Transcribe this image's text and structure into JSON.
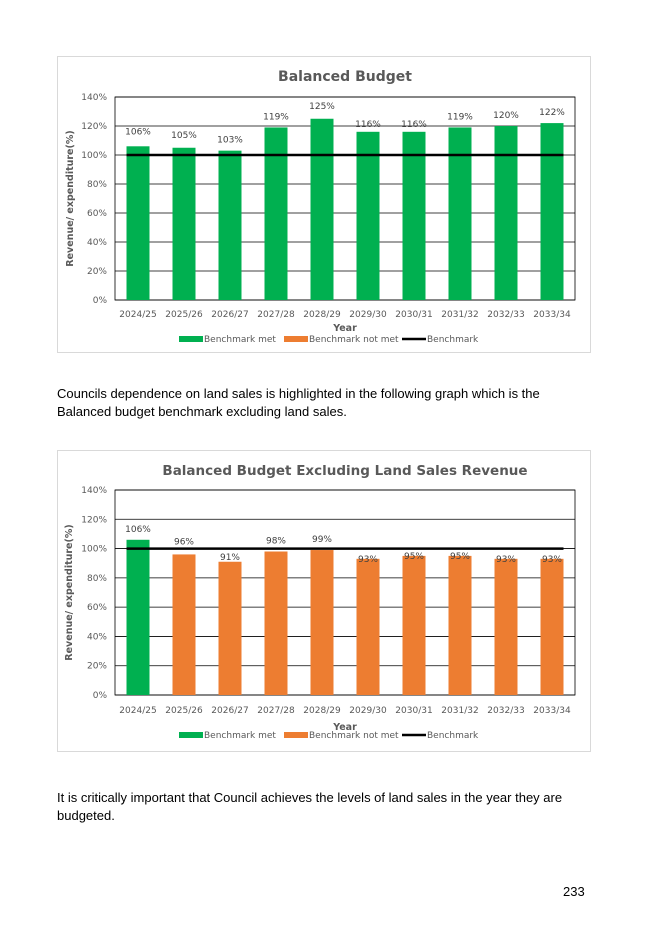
{
  "chart_data": [
    {
      "type": "bar",
      "title": "Balanced Budget",
      "xlabel": "Year",
      "ylabel": "Revenue/ expenditure(%)",
      "categories": [
        "2024/25",
        "2025/26",
        "2026/27",
        "2027/28",
        "2028/29",
        "2029/30",
        "2030/31",
        "2031/32",
        "2032/33",
        "2033/34"
      ],
      "values": [
        106,
        105,
        103,
        119,
        125,
        116,
        116,
        119,
        120,
        122
      ],
      "data_labels": [
        "106%",
        "105%",
        "103%",
        "119%",
        "125%",
        "116%",
        "116%",
        "119%",
        "120%",
        "122%"
      ],
      "bar_status": [
        "met",
        "met",
        "met",
        "met",
        "met",
        "met",
        "met",
        "met",
        "met",
        "met"
      ],
      "ylim": [
        0,
        140
      ],
      "yticks": [
        "0%",
        "20%",
        "40%",
        "60%",
        "80%",
        "100%",
        "120%",
        "140%"
      ],
      "benchmark": 100,
      "legend": [
        "Benchmark met",
        "Benchmark not met",
        "Benchmark"
      ],
      "legend_position": "bottom",
      "colors": {
        "met": "#00b050",
        "not_met": "#ed7d31",
        "benchmark": "#000000"
      }
    },
    {
      "type": "bar",
      "title": "Balanced Budget Excluding Land Sales Revenue",
      "xlabel": "Year",
      "ylabel": "Revenue/ expenditure(%)",
      "categories": [
        "2024/25",
        "2025/26",
        "2026/27",
        "2027/28",
        "2028/29",
        "2029/30",
        "2030/31",
        "2031/32",
        "2032/33",
        "2033/34"
      ],
      "values": [
        106,
        96,
        91,
        98,
        99,
        93,
        95,
        95,
        93,
        93
      ],
      "data_labels": [
        "106%",
        "96%",
        "91%",
        "98%",
        "99%",
        "93%",
        "95%",
        "95%",
        "93%",
        "93%"
      ],
      "bar_status": [
        "met",
        "not_met",
        "not_met",
        "not_met",
        "not_met",
        "not_met",
        "not_met",
        "not_met",
        "not_met",
        "not_met"
      ],
      "ylim": [
        0,
        140
      ],
      "yticks": [
        "0%",
        "20%",
        "40%",
        "60%",
        "80%",
        "100%",
        "120%",
        "140%"
      ],
      "benchmark": 100,
      "legend": [
        "Benchmark met",
        "Benchmark not met",
        "Benchmark"
      ],
      "legend_position": "bottom",
      "colors": {
        "met": "#00b050",
        "not_met": "#ed7d31",
        "benchmark": "#000000"
      }
    }
  ],
  "text": {
    "para1": "Councils dependence on land sales is highlighted in the following graph which is the Balanced budget benchmark excluding land sales.",
    "para2": "It is critically important that Council achieves the levels of land sales in the year they are budgeted.",
    "page_number": "233"
  }
}
